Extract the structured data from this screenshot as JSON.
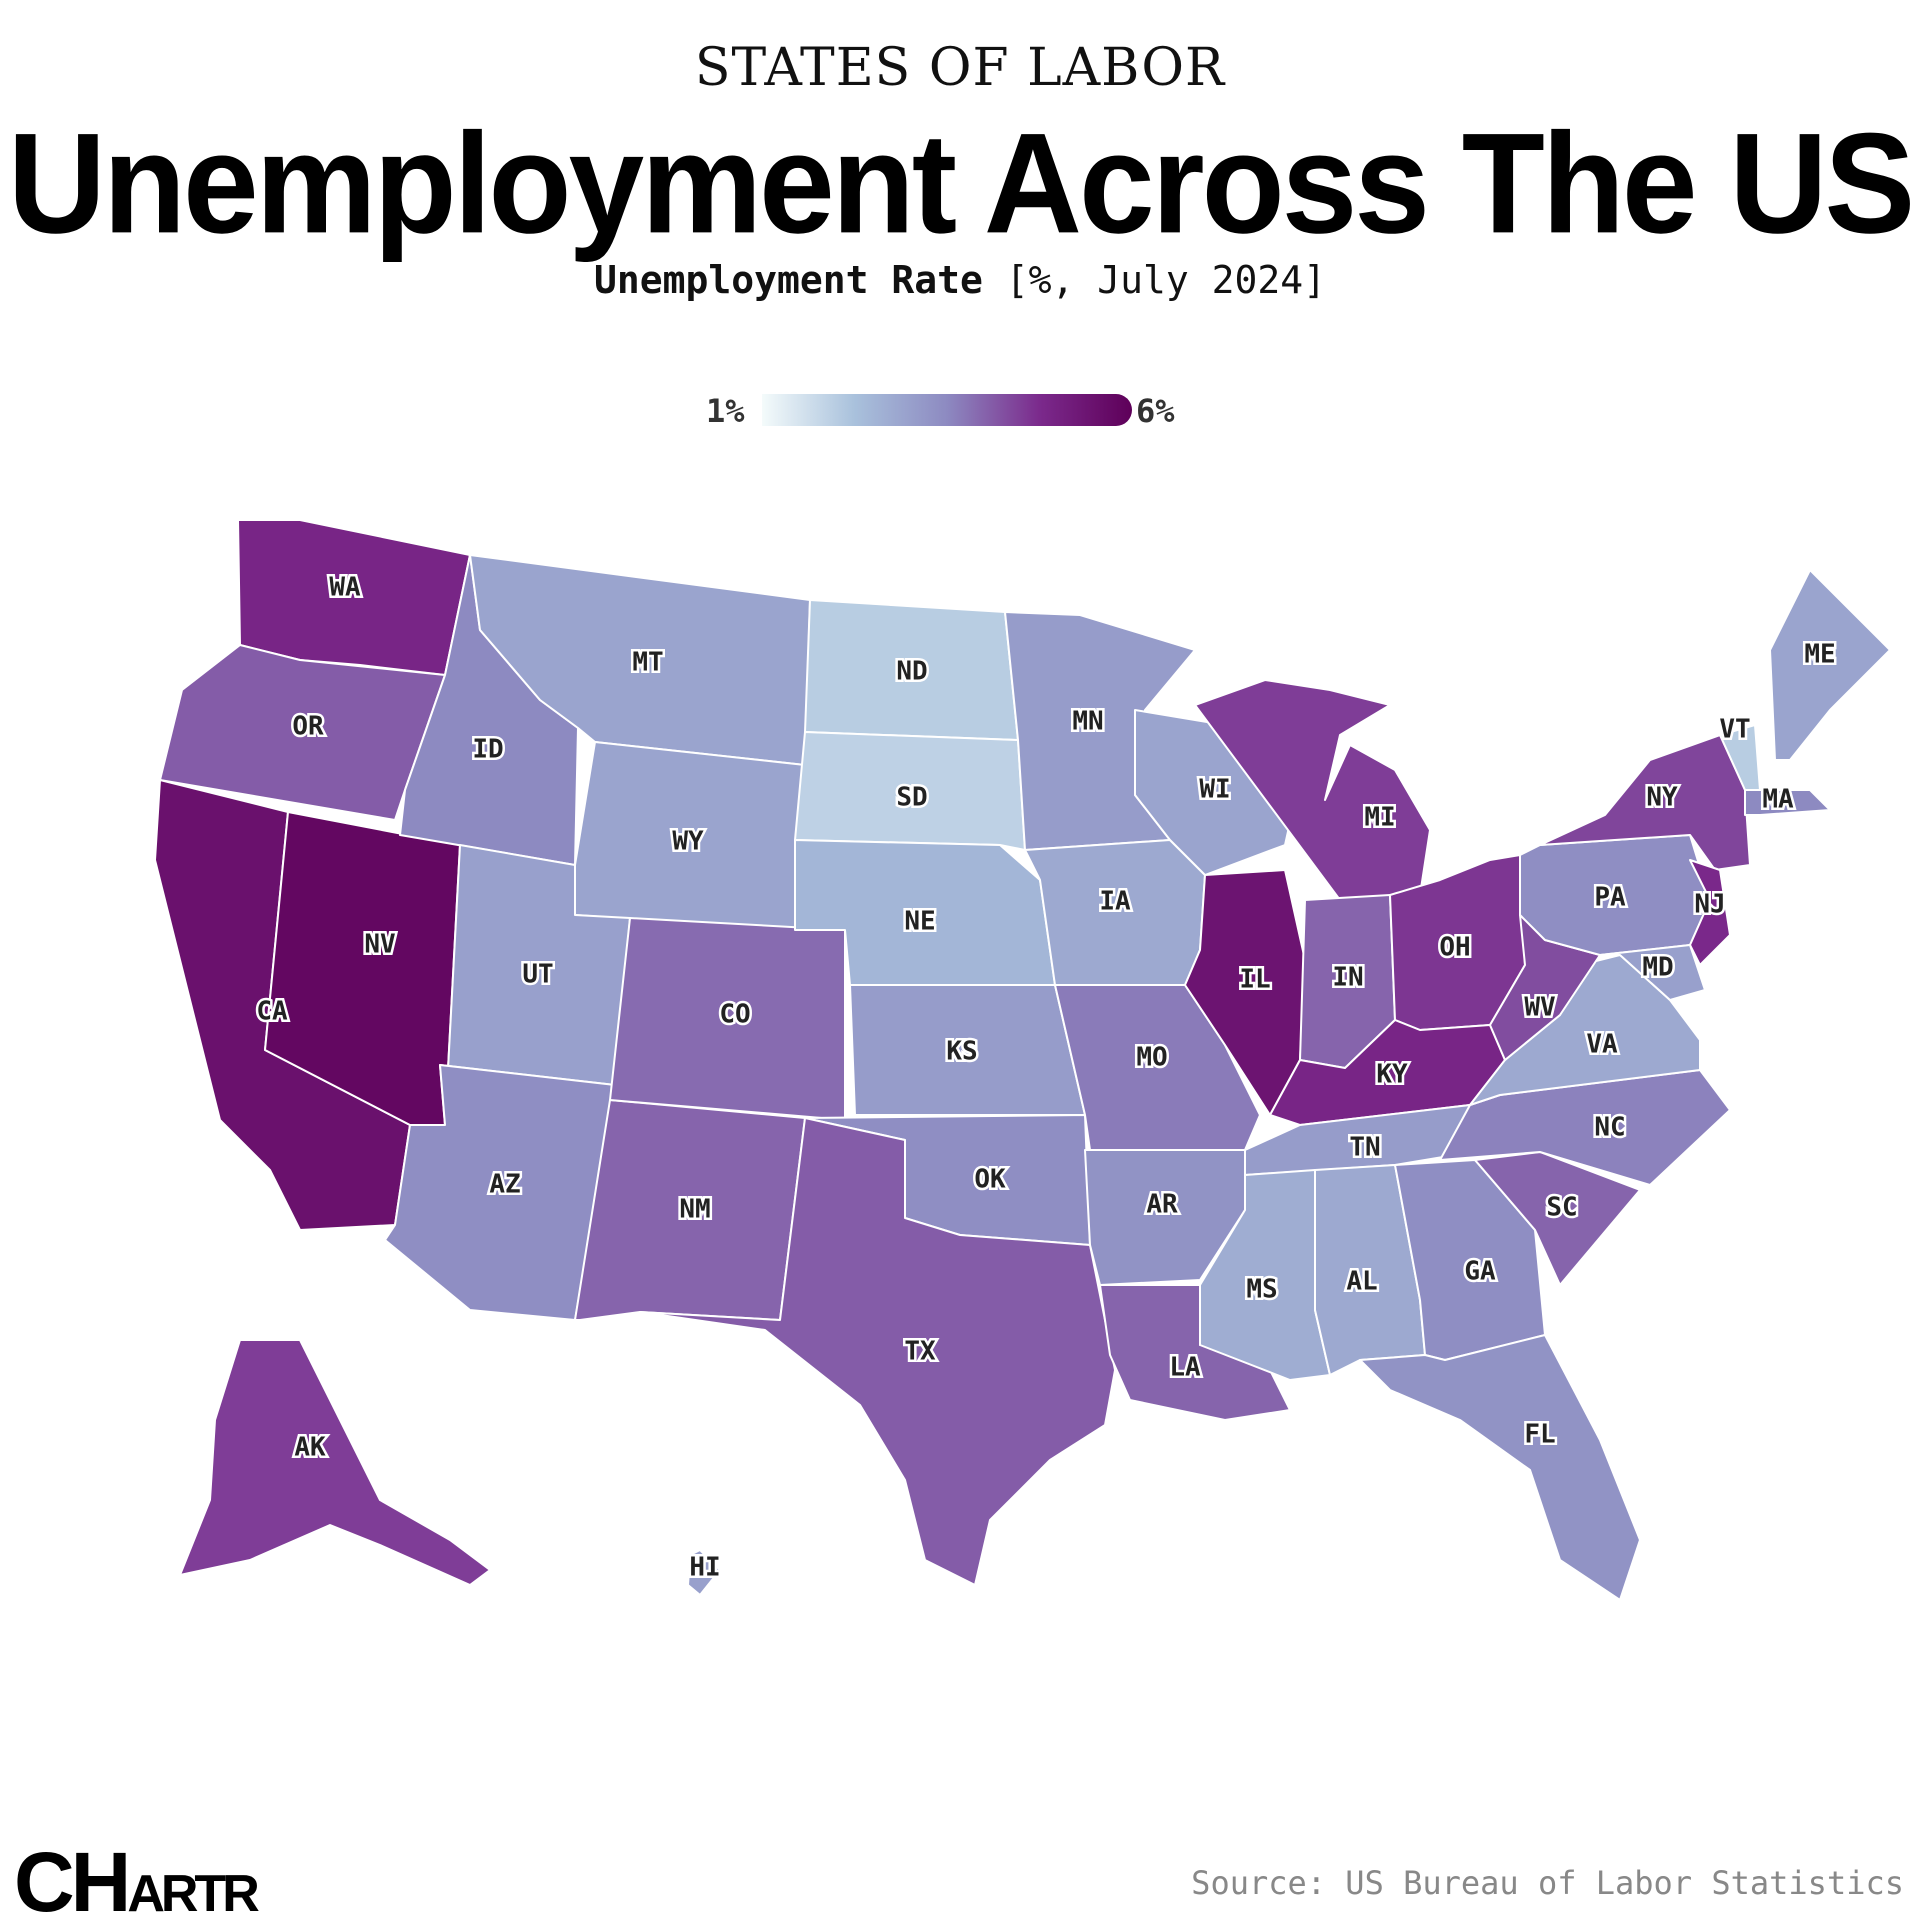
{
  "header": {
    "kicker": "STATES OF LABOR",
    "title": "Unemployment Across The US",
    "subtitle_bold": "Unemployment Rate",
    "subtitle_rest": "[%, July 2024]"
  },
  "legend": {
    "min_label": "1%",
    "max_label": "6%",
    "min": 1,
    "max": 6,
    "colors": [
      "#f4fbfb",
      "#a9c1dc",
      "#8d8ac1",
      "#7b2a8c",
      "#5e0059"
    ]
  },
  "footer": {
    "source": "Source: US Bureau of Labor Statistics",
    "logo_big": "CH",
    "logo_small": "ARTR"
  },
  "chart_data": {
    "type": "choropleth",
    "unit": "%",
    "period": "July 2024",
    "states": [
      {
        "code": "WA",
        "value": 4.9
      },
      {
        "code": "OR",
        "value": 4.1
      },
      {
        "code": "CA",
        "value": 5.5
      },
      {
        "code": "NV",
        "value": 5.8
      },
      {
        "code": "ID",
        "value": 3.5
      },
      {
        "code": "MT",
        "value": 2.9
      },
      {
        "code": "WY",
        "value": 2.9
      },
      {
        "code": "UT",
        "value": 3.0
      },
      {
        "code": "AZ",
        "value": 3.4
      },
      {
        "code": "NM",
        "value": 4.0
      },
      {
        "code": "CO",
        "value": 3.9
      },
      {
        "code": "ND",
        "value": 2.0
      },
      {
        "code": "SD",
        "value": 1.9
      },
      {
        "code": "NE",
        "value": 2.5
      },
      {
        "code": "KS",
        "value": 3.1
      },
      {
        "code": "OK",
        "value": 3.4
      },
      {
        "code": "TX",
        "value": 4.1
      },
      {
        "code": "MN",
        "value": 3.1
      },
      {
        "code": "IA",
        "value": 2.8
      },
      {
        "code": "MO",
        "value": 3.7
      },
      {
        "code": "AR",
        "value": 3.3
      },
      {
        "code": "LA",
        "value": 4.0
      },
      {
        "code": "WI",
        "value": 2.9
      },
      {
        "code": "IL",
        "value": 5.4
      },
      {
        "code": "MI",
        "value": 4.5
      },
      {
        "code": "IN",
        "value": 4.0
      },
      {
        "code": "OH",
        "value": 4.6
      },
      {
        "code": "KY",
        "value": 4.9
      },
      {
        "code": "TN",
        "value": 3.1
      },
      {
        "code": "MS",
        "value": 2.7
      },
      {
        "code": "AL",
        "value": 2.8
      },
      {
        "code": "GA",
        "value": 3.4
      },
      {
        "code": "FL",
        "value": 3.3
      },
      {
        "code": "SC",
        "value": 4.0
      },
      {
        "code": "NC",
        "value": 3.6
      },
      {
        "code": "VA",
        "value": 2.8
      },
      {
        "code": "WV",
        "value": 4.3
      },
      {
        "code": "PA",
        "value": 3.4
      },
      {
        "code": "NY",
        "value": 4.4
      },
      {
        "code": "NJ",
        "value": 4.8
      },
      {
        "code": "MD",
        "value": 3.0
      },
      {
        "code": "VT",
        "value": 2.0
      },
      {
        "code": "ME",
        "value": 2.9
      },
      {
        "code": "MA",
        "value": 3.5
      },
      {
        "code": "AK",
        "value": 4.5
      },
      {
        "code": "HI",
        "value": 3.0
      }
    ]
  }
}
